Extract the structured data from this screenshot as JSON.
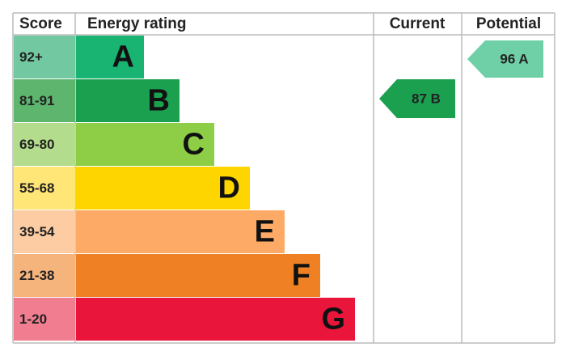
{
  "header": {
    "score": "Score",
    "energy_rating": "Energy rating",
    "current": "Current",
    "potential": "Potential"
  },
  "bands": [
    {
      "score": "92+",
      "letter": "A"
    },
    {
      "score": "81-91",
      "letter": "B"
    },
    {
      "score": "69-80",
      "letter": "C"
    },
    {
      "score": "55-68",
      "letter": "D"
    },
    {
      "score": "39-54",
      "letter": "E"
    },
    {
      "score": "21-38",
      "letter": "F"
    },
    {
      "score": "1-20",
      "letter": "G"
    }
  ],
  "current": {
    "label": "87 B"
  },
  "potential": {
    "label": "96 A"
  }
}
